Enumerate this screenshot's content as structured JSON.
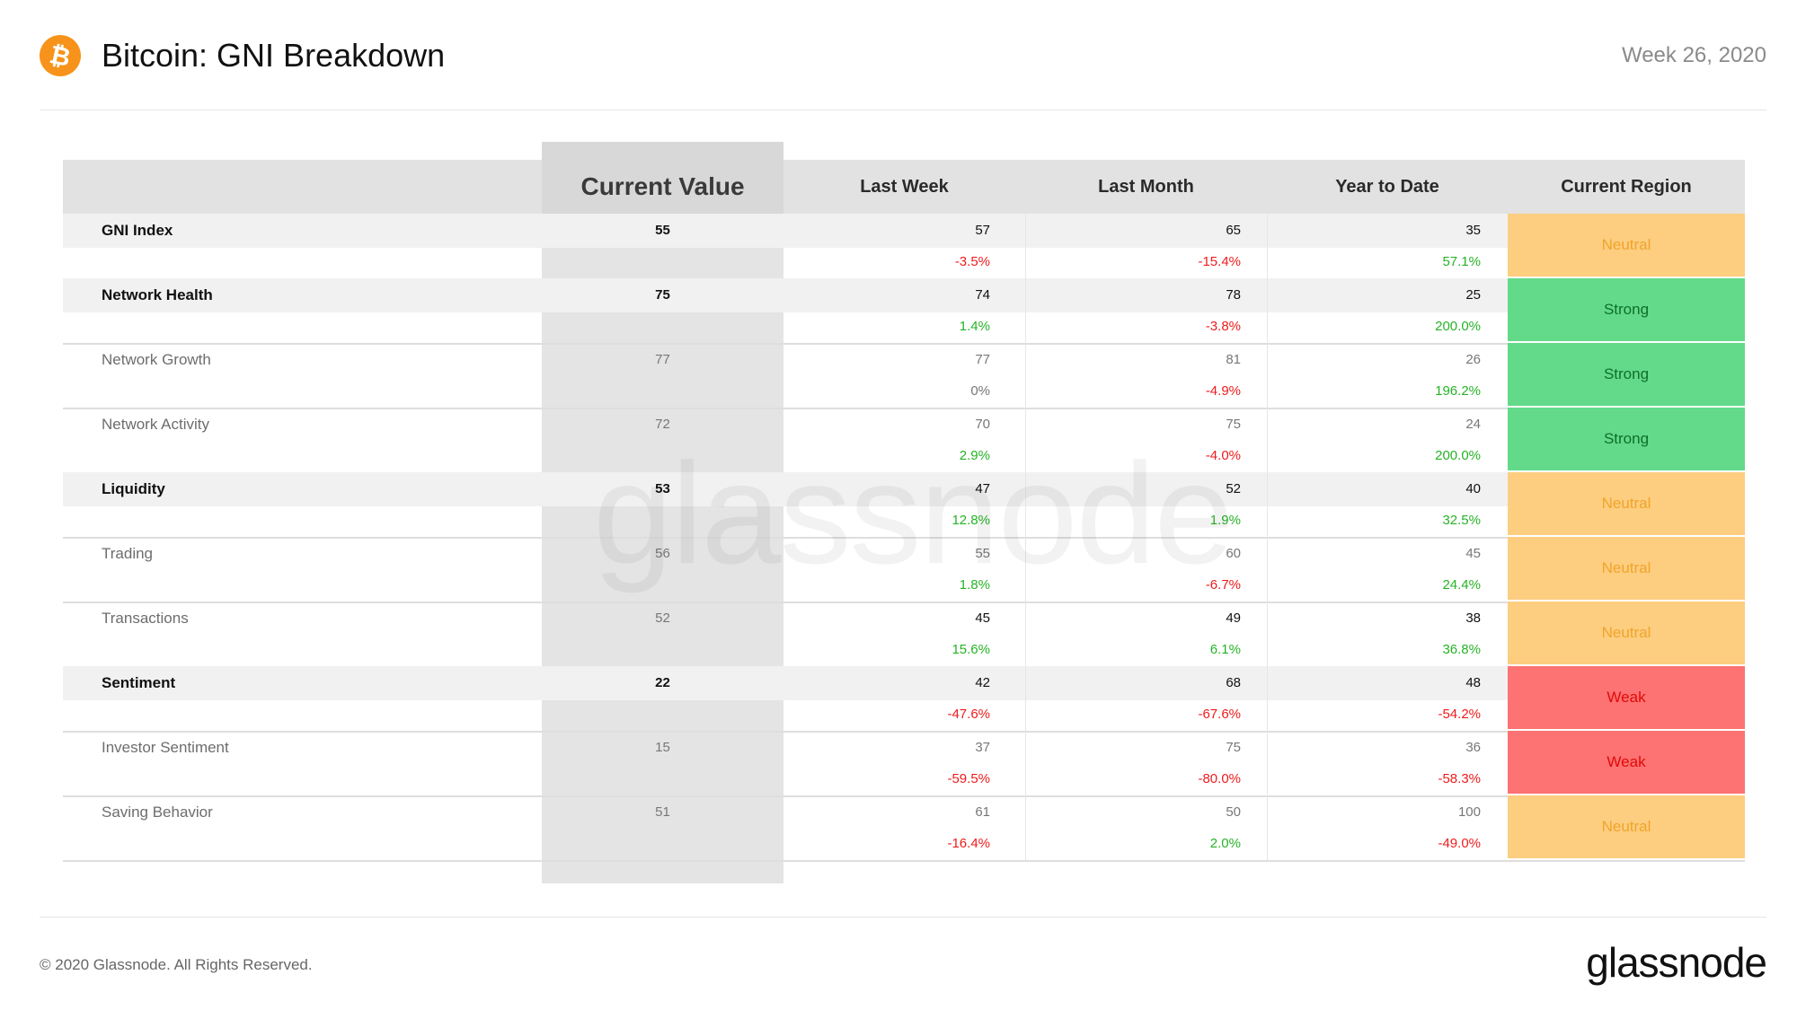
{
  "header": {
    "title": "Bitcoin: GNI Breakdown",
    "week": "Week 26, 2020",
    "logo_icon": "bitcoin-icon",
    "logo_color": "#f7931a"
  },
  "table": {
    "columns": {
      "current_value": "Current Value",
      "last_week": "Last Week",
      "last_month": "Last Month",
      "year_to_date": "Year to Date",
      "current_region": "Current Region"
    },
    "rows": [
      {
        "name": "GNI Index",
        "current": "55",
        "lw": "57",
        "lw_pct": "-3.5%",
        "lm": "65",
        "lm_pct": "-15.4%",
        "ytd": "35",
        "ytd_pct": "57.1%",
        "region": "Neutral"
      },
      {
        "name": "Network Health",
        "current": "75",
        "lw": "74",
        "lw_pct": "1.4%",
        "lm": "78",
        "lm_pct": "-3.8%",
        "ytd": "25",
        "ytd_pct": "200.0%",
        "region": "Strong"
      },
      {
        "name": "Network Growth",
        "current": "77",
        "lw": "77",
        "lw_pct": "0%",
        "lm": "81",
        "lm_pct": "-4.9%",
        "ytd": "26",
        "ytd_pct": "196.2%",
        "region": "Strong"
      },
      {
        "name": "Network Activity",
        "current": "72",
        "lw": "70",
        "lw_pct": "2.9%",
        "lm": "75",
        "lm_pct": "-4.0%",
        "ytd": "24",
        "ytd_pct": "200.0%",
        "region": "Strong"
      },
      {
        "name": "Liquidity",
        "current": "53",
        "lw": "47",
        "lw_pct": "12.8%",
        "lm": "52",
        "lm_pct": "1.9%",
        "ytd": "40",
        "ytd_pct": "32.5%",
        "region": "Neutral"
      },
      {
        "name": "Trading",
        "current": "56",
        "lw": "55",
        "lw_pct": "1.8%",
        "lm": "60",
        "lm_pct": "-6.7%",
        "ytd": "45",
        "ytd_pct": "24.4%",
        "region": "Neutral"
      },
      {
        "name": "Transactions",
        "current": "52",
        "lw": "45",
        "lw_pct": "15.6%",
        "lm": "49",
        "lm_pct": "6.1%",
        "ytd": "38",
        "ytd_pct": "36.8%",
        "region": "Neutral"
      },
      {
        "name": "Sentiment",
        "current": "22",
        "lw": "42",
        "lw_pct": "-47.6%",
        "lm": "68",
        "lm_pct": "-67.6%",
        "ytd": "48",
        "ytd_pct": "-54.2%",
        "region": "Weak"
      },
      {
        "name": "Investor Sentiment",
        "current": "15",
        "lw": "37",
        "lw_pct": "-59.5%",
        "lm": "75",
        "lm_pct": "-80.0%",
        "ytd": "36",
        "ytd_pct": "-58.3%",
        "region": "Weak"
      },
      {
        "name": "Saving Behavior",
        "current": "51",
        "lw": "61",
        "lw_pct": "-16.4%",
        "lm": "50",
        "lm_pct": "2.0%",
        "ytd": "100",
        "ytd_pct": "-49.0%",
        "region": "Neutral"
      }
    ]
  },
  "colors": {
    "neutral": "#fdcd80",
    "strong": "#62da8a",
    "weak": "#fd7272",
    "negative": "#ee1c1c",
    "positive": "#26b326"
  },
  "watermark": "glassnode",
  "footer": {
    "copyright": "© 2020 Glassnode. All Rights Reserved.",
    "brand": "glassnode"
  }
}
